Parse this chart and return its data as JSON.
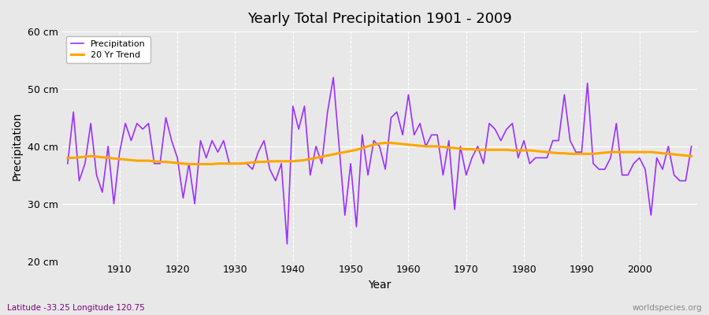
{
  "title": "Yearly Total Precipitation 1901 - 2009",
  "xlabel": "Year",
  "ylabel": "Precipitation",
  "footnote_left": "Latitude -33.25 Longitude 120.75",
  "footnote_right": "worldspecies.org",
  "ylim": [
    20,
    60
  ],
  "yticks": [
    20,
    30,
    40,
    50,
    60
  ],
  "ytick_labels": [
    "20 cm",
    "30 cm",
    "40 cm",
    "50 cm",
    "60 cm"
  ],
  "start_year": 1901,
  "precip_color": "#9B30FF",
  "trend_color": "#FFA500",
  "bg_color": "#E8E8E8",
  "grid_color": "#FFFFFF",
  "legend_labels": [
    "Precipitation",
    "20 Yr Trend"
  ],
  "precipitation": [
    37,
    46,
    34,
    37,
    44,
    35,
    32,
    40,
    30,
    39,
    44,
    41,
    44,
    43,
    44,
    37,
    37,
    45,
    41,
    38,
    31,
    37,
    30,
    41,
    38,
    41,
    39,
    41,
    37,
    37,
    37,
    37,
    36,
    39,
    41,
    36,
    34,
    37,
    23,
    47,
    43,
    47,
    35,
    40,
    37,
    46,
    52,
    40,
    28,
    37,
    26,
    42,
    35,
    41,
    40,
    36,
    45,
    46,
    42,
    49,
    42,
    44,
    40,
    42,
    42,
    35,
    41,
    29,
    40,
    35,
    38,
    40,
    37,
    44,
    43,
    41,
    43,
    44,
    38,
    41,
    37,
    38,
    38,
    38,
    41,
    41,
    49,
    41,
    39,
    39,
    51,
    37,
    36,
    36,
    38,
    44,
    35,
    35,
    37,
    38,
    36,
    28,
    38,
    36,
    40,
    35,
    34,
    34,
    40
  ],
  "trend": [
    38.0,
    38.0,
    38.1,
    38.2,
    38.3,
    38.2,
    38.1,
    38.0,
    37.9,
    37.8,
    37.7,
    37.6,
    37.5,
    37.5,
    37.5,
    37.4,
    37.3,
    37.3,
    37.2,
    37.1,
    37.0,
    36.9,
    36.9,
    36.9,
    36.9,
    36.9,
    37.0,
    37.0,
    37.0,
    37.0,
    37.0,
    37.1,
    37.2,
    37.3,
    37.3,
    37.4,
    37.4,
    37.4,
    37.4,
    37.4,
    37.5,
    37.6,
    37.8,
    38.0,
    38.2,
    38.4,
    38.6,
    38.8,
    39.0,
    39.2,
    39.4,
    39.7,
    40.0,
    40.3,
    40.5,
    40.6,
    40.6,
    40.5,
    40.4,
    40.3,
    40.2,
    40.1,
    40.0,
    40.0,
    40.0,
    39.9,
    39.8,
    39.7,
    39.6,
    39.5,
    39.5,
    39.4,
    39.4,
    39.4,
    39.4,
    39.4,
    39.4,
    39.3,
    39.3,
    39.3,
    39.3,
    39.2,
    39.1,
    39.0,
    38.9,
    38.8,
    38.8,
    38.7,
    38.7,
    38.7,
    38.7,
    38.7,
    38.8,
    38.9,
    39.0,
    39.0,
    39.0,
    39.0,
    39.0,
    39.0,
    39.0,
    39.0,
    38.9,
    38.8,
    38.7,
    38.6,
    38.5,
    38.4,
    38.3
  ]
}
